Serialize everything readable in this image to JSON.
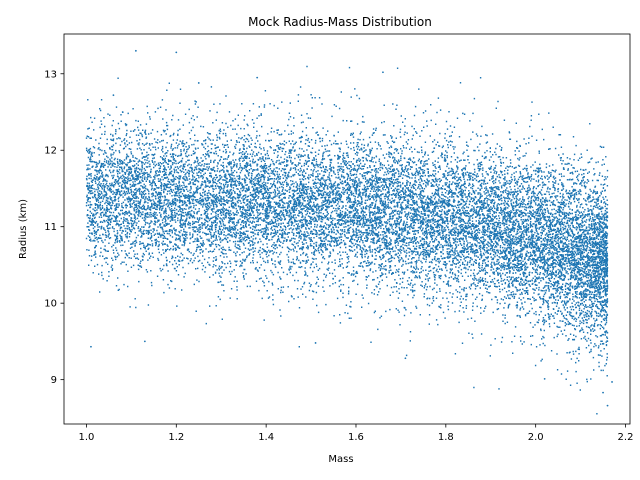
{
  "chart_data": {
    "type": "scatter",
    "title": "Mock Radius-Mass Distribution",
    "xlabel": "Mass",
    "ylabel": "Radius (km)",
    "xlim": [
      0.95,
      2.21
    ],
    "ylim": [
      8.42,
      13.52
    ],
    "xticks": [
      1.0,
      1.2,
      1.4,
      1.6,
      1.8,
      2.0,
      2.2
    ],
    "xtick_labels": [
      "1.0",
      "1.2",
      "1.4",
      "1.6",
      "1.8",
      "2.0",
      "2.2"
    ],
    "yticks": [
      9,
      10,
      11,
      12,
      13
    ],
    "ytick_labels": [
      "9",
      "10",
      "11",
      "12",
      "13"
    ],
    "grid": false,
    "legend": false,
    "point_color": "#1f77b4",
    "distribution": {
      "x_range": [
        1.0,
        2.16
      ],
      "center_profile": [
        {
          "x": 1.0,
          "y": 11.4
        },
        {
          "x": 1.6,
          "y": 11.25
        },
        {
          "x": 1.9,
          "y": 11.0
        },
        {
          "x": 2.16,
          "y": 10.5
        }
      ],
      "spread_profile": [
        {
          "x": 1.0,
          "y": 0.45
        },
        {
          "x": 1.8,
          "y": 0.5
        },
        {
          "x": 2.16,
          "y": 0.55
        }
      ],
      "n_points": 16000
    },
    "outliers": [
      {
        "x": 1.11,
        "y": 13.3
      },
      {
        "x": 1.2,
        "y": 13.28
      },
      {
        "x": 1.66,
        "y": 13.02
      },
      {
        "x": 1.01,
        "y": 9.43
      },
      {
        "x": 1.13,
        "y": 9.5
      },
      {
        "x": 1.51,
        "y": 9.48
      },
      {
        "x": 1.71,
        "y": 9.28
      },
      {
        "x": 2.02,
        "y": 9.01
      },
      {
        "x": 2.16,
        "y": 8.66
      },
      {
        "x": 2.15,
        "y": 8.83
      },
      {
        "x": 2.17,
        "y": 8.97
      },
      {
        "x": 1.38,
        "y": 12.95
      },
      {
        "x": 1.25,
        "y": 12.88
      },
      {
        "x": 1.06,
        "y": 12.72
      }
    ]
  }
}
